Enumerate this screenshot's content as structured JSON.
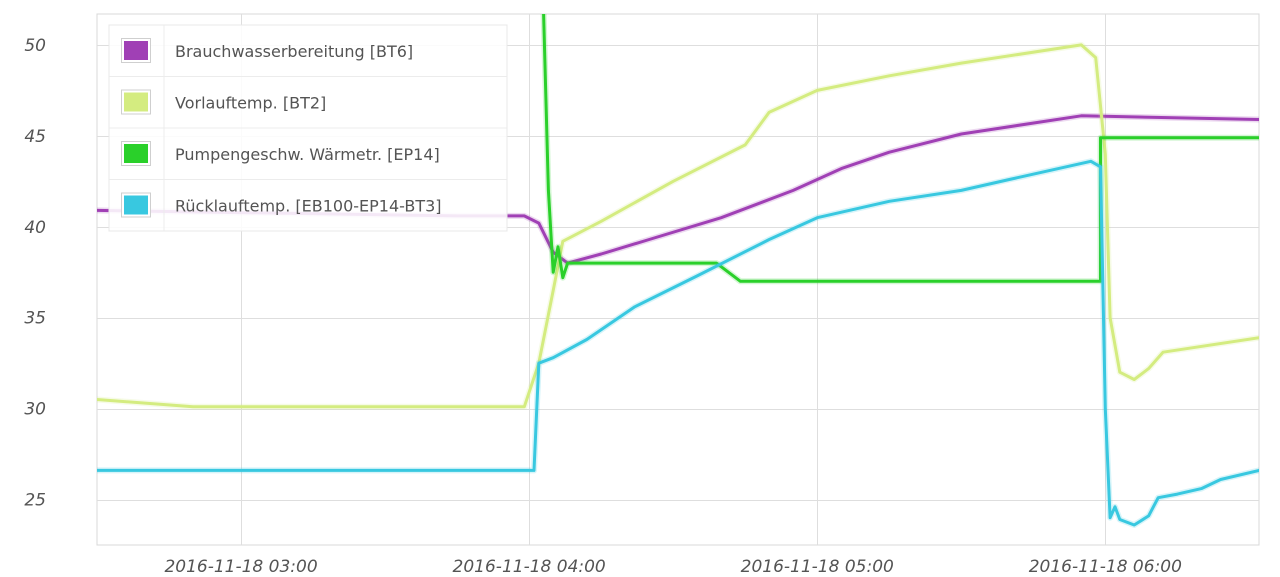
{
  "chart_data": {
    "type": "line",
    "title": "",
    "xlabel": "",
    "ylabel": "",
    "x_range": [
      "2016-11-18 02:30",
      "2016-11-18 06:32"
    ],
    "ylim": [
      22.5,
      51.7
    ],
    "x_ticks": [
      "2016-11-18 03:00",
      "2016-11-18 04:00",
      "2016-11-18 05:00",
      "2016-11-18 06:00"
    ],
    "y_ticks": [
      25,
      30,
      35,
      40,
      45,
      50
    ],
    "grid": true,
    "legend_position": "top-left",
    "series": [
      {
        "name": "Brauchwasserbereitung [BT6]",
        "color": "#a040b5",
        "points": [
          [
            "2016-11-18 02:30",
            40.9
          ],
          [
            "2016-11-18 03:45",
            40.6
          ],
          [
            "2016-11-18 03:59",
            40.6
          ],
          [
            "2016-11-18 04:02",
            40.2
          ],
          [
            "2016-11-18 04:05",
            38.6
          ],
          [
            "2016-11-18 04:08",
            38.0
          ],
          [
            "2016-11-18 04:15",
            38.5
          ],
          [
            "2016-11-18 04:25",
            39.3
          ],
          [
            "2016-11-18 04:40",
            40.5
          ],
          [
            "2016-11-18 04:55",
            42.0
          ],
          [
            "2016-11-18 05:05",
            43.2
          ],
          [
            "2016-11-18 05:15",
            44.1
          ],
          [
            "2016-11-18 05:30",
            45.1
          ],
          [
            "2016-11-18 05:55",
            46.1
          ],
          [
            "2016-11-18 06:32",
            45.9
          ]
        ]
      },
      {
        "name": "Vorlauftemp. [BT2]",
        "color": "#d4ec80",
        "points": [
          [
            "2016-11-18 02:30",
            30.5
          ],
          [
            "2016-11-18 02:50",
            30.1
          ],
          [
            "2016-11-18 03:59",
            30.1
          ],
          [
            "2016-11-18 04:02",
            32.5
          ],
          [
            "2016-11-18 04:05",
            36.5
          ],
          [
            "2016-11-18 04:07",
            39.2
          ],
          [
            "2016-11-18 04:15",
            40.3
          ],
          [
            "2016-11-18 04:30",
            42.5
          ],
          [
            "2016-11-18 04:45",
            44.5
          ],
          [
            "2016-11-18 04:50",
            46.3
          ],
          [
            "2016-11-18 05:00",
            47.5
          ],
          [
            "2016-11-18 05:15",
            48.3
          ],
          [
            "2016-11-18 05:30",
            49.0
          ],
          [
            "2016-11-18 05:55",
            50.0
          ],
          [
            "2016-11-18 05:58",
            49.3
          ],
          [
            "2016-11-18 06:00",
            44.0
          ],
          [
            "2016-11-18 06:01",
            35.0
          ],
          [
            "2016-11-18 06:03",
            32.0
          ],
          [
            "2016-11-18 06:06",
            31.6
          ],
          [
            "2016-11-18 06:09",
            32.2
          ],
          [
            "2016-11-18 06:12",
            33.1
          ],
          [
            "2016-11-18 06:32",
            33.9
          ]
        ]
      },
      {
        "name": "Pumpengeschw. Wärmetr. [EP14]",
        "color": "#2ad02a",
        "points": [
          [
            "2016-11-18 04:03",
            51.7
          ],
          [
            "2016-11-18 04:04",
            42.0
          ],
          [
            "2016-11-18 04:05",
            37.5
          ],
          [
            "2016-11-18 04:06",
            38.9
          ],
          [
            "2016-11-18 04:07",
            37.2
          ],
          [
            "2016-11-18 04:08",
            38.0
          ],
          [
            "2016-11-18 04:39",
            38.0
          ],
          [
            "2016-11-18 04:44",
            37.0
          ],
          [
            "2016-11-18 05:59",
            37.0
          ],
          [
            "2016-11-18 05:59",
            44.9
          ],
          [
            "2016-11-18 06:32",
            44.9
          ]
        ]
      },
      {
        "name": "Rücklauftemp. [EB100-EP14-BT3]",
        "color": "#38c8e0",
        "points": [
          [
            "2016-11-18 02:30",
            26.6
          ],
          [
            "2016-11-18 04:01",
            26.6
          ],
          [
            "2016-11-18 04:02",
            32.5
          ],
          [
            "2016-11-18 04:05",
            32.8
          ],
          [
            "2016-11-18 04:12",
            33.8
          ],
          [
            "2016-11-18 04:22",
            35.6
          ],
          [
            "2016-11-18 04:35",
            37.3
          ],
          [
            "2016-11-18 04:50",
            39.3
          ],
          [
            "2016-11-18 05:00",
            40.5
          ],
          [
            "2016-11-18 05:15",
            41.4
          ],
          [
            "2016-11-18 05:30",
            42.0
          ],
          [
            "2016-11-18 05:40",
            42.6
          ],
          [
            "2016-11-18 05:57",
            43.6
          ],
          [
            "2016-11-18 05:59",
            43.3
          ],
          [
            "2016-11-18 06:00",
            30.0
          ],
          [
            "2016-11-18 06:01",
            24.0
          ],
          [
            "2016-11-18 06:02",
            24.6
          ],
          [
            "2016-11-18 06:03",
            23.9
          ],
          [
            "2016-11-18 06:06",
            23.6
          ],
          [
            "2016-11-18 06:09",
            24.1
          ],
          [
            "2016-11-18 06:11",
            25.1
          ],
          [
            "2016-11-18 06:15",
            25.3
          ],
          [
            "2016-11-18 06:20",
            25.6
          ],
          [
            "2016-11-18 06:24",
            26.1
          ],
          [
            "2016-11-18 06:32",
            26.6
          ]
        ]
      }
    ]
  }
}
